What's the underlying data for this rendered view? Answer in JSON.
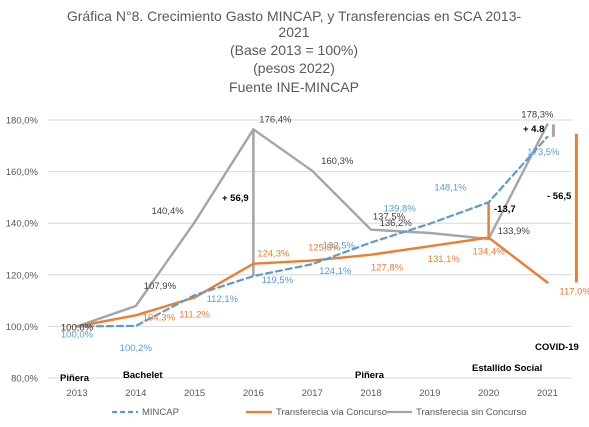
{
  "chart_data": {
    "type": "line",
    "title_lines": [
      "Gráfica N°8. Crecimiento Gasto MINCAP, y Transferencias en SCA 2013-",
      "2021",
      "(Base 2013 = 100%)",
      "(pesos 2022)",
      "Fuente INE-MINCAP"
    ],
    "categories": [
      "2013",
      "2014",
      "2015",
      "2016",
      "2017",
      "2018",
      "2019",
      "2020",
      "2021"
    ],
    "ylim": [
      80,
      180
    ],
    "yticks": [
      "80,0%",
      "100,0%",
      "120,0%",
      "140,0%",
      "160,0%",
      "180,0%"
    ],
    "ytick_values": [
      80,
      100,
      120,
      140,
      160,
      180
    ],
    "grid": true,
    "legend_position": "bottom",
    "series": [
      {
        "name": "MINCAP",
        "color": "#5B9BD5",
        "style": "dashed",
        "values": [
          100,
          100.2,
          112.1,
          119.5,
          124.1,
          132.5,
          139.8,
          148.1,
          173.5
        ],
        "labels": [
          "100,0%",
          "100,2%",
          "112,1%",
          "119,5%",
          "124,1%",
          "132,5%",
          "139,8%",
          "148,1%",
          "173,5%"
        ]
      },
      {
        "name": "Transferecia vía Concurso",
        "color": "#ED7D31",
        "style": "solid",
        "values": [
          100,
          104.3,
          111.2,
          124.3,
          125.5,
          127.8,
          131.1,
          134.4,
          117.0
        ],
        "labels": [
          "100,0%",
          "104,3%",
          "111,2%",
          "124,3%",
          "125,5%",
          "127,8%",
          "131,1%",
          "134,4%",
          "117,0%"
        ]
      },
      {
        "name": "Transferecia sin Concurso",
        "color": "#A5A5A5",
        "style": "solid",
        "values": [
          100,
          107.9,
          140.4,
          176.4,
          160.3,
          137.5,
          136.2,
          133.9,
          178.3
        ],
        "labels": [
          "100,0%",
          "107,9%",
          "140,4%",
          "176,4%",
          "160,3%",
          "137,5%",
          "136,2%",
          "133,9%",
          "178,3%"
        ]
      }
    ],
    "annotations": [
      {
        "text": "+ 56,9",
        "kind": "delta"
      },
      {
        "text": "-13,7",
        "kind": "delta"
      },
      {
        "text": "+ 4.8",
        "kind": "delta"
      },
      {
        "text": "- 56,5",
        "kind": "delta"
      },
      {
        "text": "Piñera",
        "kind": "period"
      },
      {
        "text": "Bachelet",
        "kind": "period"
      },
      {
        "text": "Piñera",
        "kind": "period"
      },
      {
        "text": "Estallido Social",
        "kind": "event"
      },
      {
        "text": "COVID-19",
        "kind": "event"
      }
    ]
  }
}
